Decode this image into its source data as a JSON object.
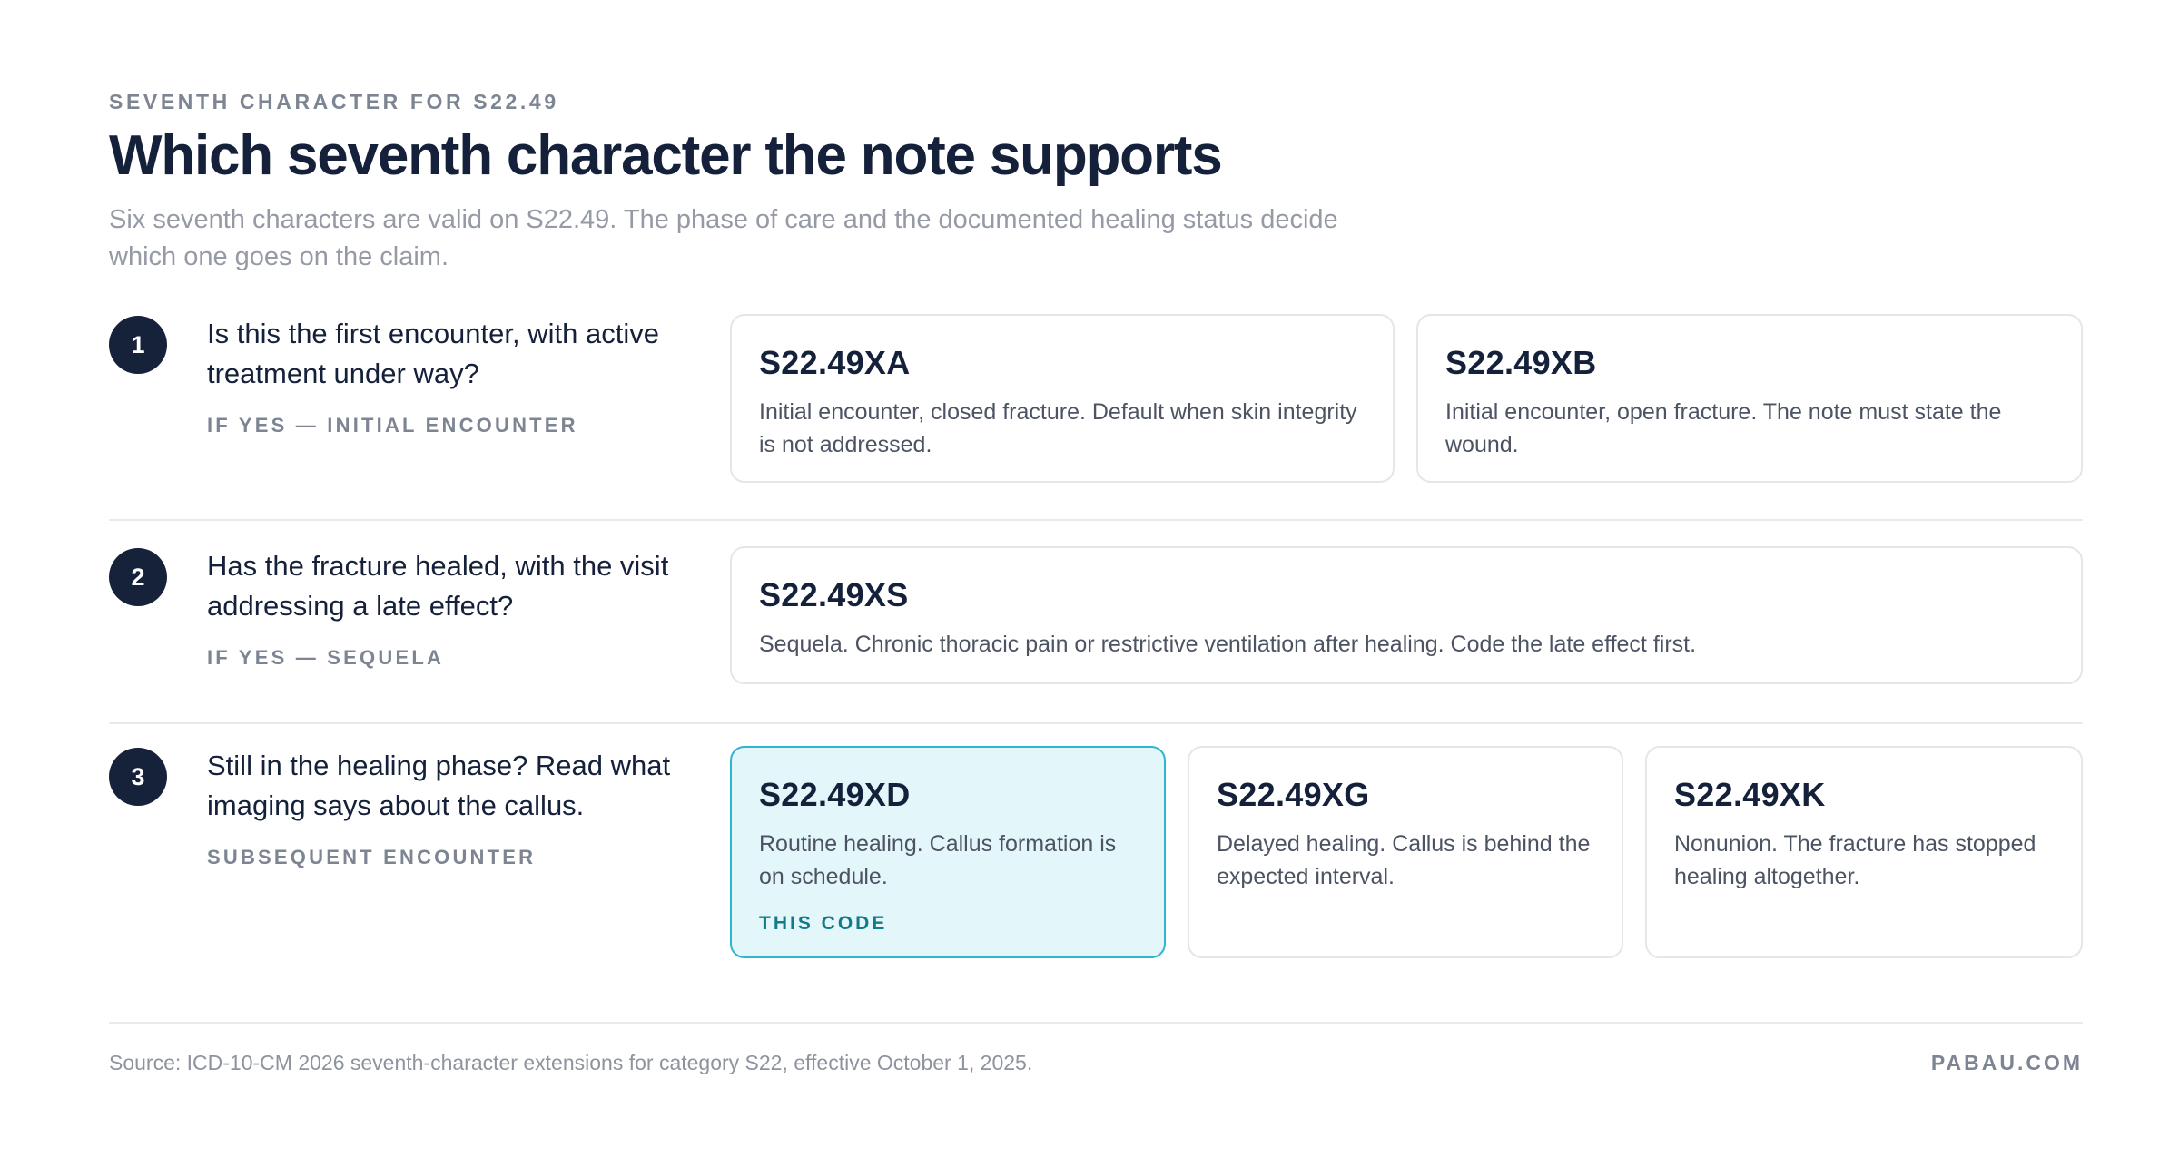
{
  "header": {
    "eyebrow": "SEVENTH CHARACTER FOR S22.49",
    "title": "Which seventh character the note supports",
    "subtitle": "Six seventh characters are valid on S22.49. The phase of care and the documented healing status decide which one goes on the claim."
  },
  "steps": [
    {
      "number": "1",
      "question": "Is this the first encounter, with active treatment under way?",
      "answer_tag": "IF YES — INITIAL ENCOUNTER",
      "cards": [
        {
          "code": "S22.49XA",
          "description": "Initial encounter, closed fracture. Default when skin integrity is not addressed."
        },
        {
          "code": "S22.49XB",
          "description": "Initial encounter, open fracture. The note must state the wound."
        }
      ]
    },
    {
      "number": "2",
      "question": "Has the fracture healed, with the visit addressing a late effect?",
      "answer_tag": "IF YES — SEQUELA",
      "cards": [
        {
          "code": "S22.49XS",
          "description": "Sequela. Chronic thoracic pain or restrictive ventilation after healing. Code the late effect first."
        }
      ]
    },
    {
      "number": "3",
      "question": "Still in the healing phase? Read what imaging says about the callus.",
      "answer_tag": "SUBSEQUENT ENCOUNTER",
      "cards": [
        {
          "code": "S22.49XD",
          "description": "Routine healing. Callus formation is on schedule.",
          "badge": "THIS CODE",
          "highlighted": true
        },
        {
          "code": "S22.49XG",
          "description": "Delayed healing. Callus is behind the expected interval."
        },
        {
          "code": "S22.49XK",
          "description": "Nonunion. The fracture has stopped healing altogether."
        }
      ]
    }
  ],
  "footer": {
    "source": "Source: ICD-10-CM 2026 seventh-character extensions for category S22, effective October 1, 2025.",
    "brand": "PABAU.COM"
  },
  "colors": {
    "ink": "#15213a",
    "muted": "#7d8593",
    "highlight_fill": "#e3f6fa",
    "highlight_border": "#2eb6cc",
    "badge": "#117c85"
  }
}
